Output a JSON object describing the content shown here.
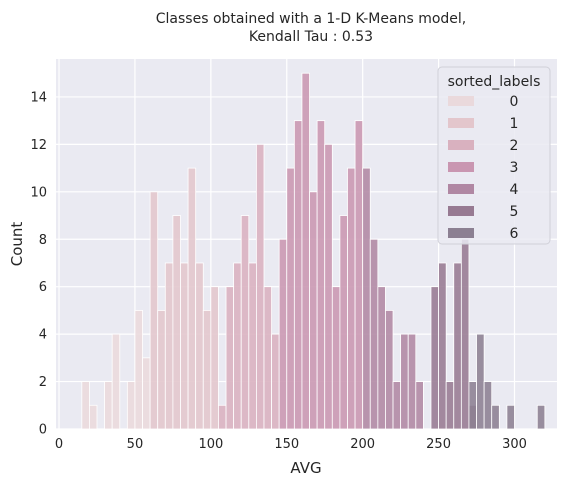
{
  "chart_data": {
    "type": "bar",
    "title_line1": "Classes obtained with a 1-D K-Means model,",
    "title_line2": "Kendall Tau : 0.53",
    "xlabel": "AVG",
    "ylabel": "Count",
    "xlim": [
      -2,
      328
    ],
    "ylim": [
      0,
      15.6
    ],
    "xticks": [
      0,
      50,
      100,
      150,
      200,
      250,
      300
    ],
    "yticks": [
      0,
      2,
      4,
      6,
      8,
      10,
      12,
      14
    ],
    "bin_width": 5,
    "grid": true,
    "legend_position": "top-right",
    "legend_title": "sorted_labels",
    "series": [
      {
        "name": "0",
        "color": "#ead9dc",
        "bins": [
          [
            15,
            2
          ],
          [
            20,
            1
          ],
          [
            30,
            2
          ],
          [
            35,
            4
          ],
          [
            45,
            2
          ],
          [
            50,
            5
          ],
          [
            55,
            3
          ]
        ]
      },
      {
        "name": "1",
        "color": "#e3c6cc",
        "bins": [
          [
            60,
            10
          ],
          [
            65,
            5
          ],
          [
            70,
            7
          ],
          [
            75,
            9
          ],
          [
            80,
            7
          ],
          [
            85,
            11
          ],
          [
            90,
            7
          ],
          [
            95,
            5
          ],
          [
            100,
            6
          ]
        ]
      },
      {
        "name": "2",
        "color": "#d9b1bf",
        "bins": [
          [
            105,
            1
          ],
          [
            110,
            6
          ],
          [
            115,
            7
          ],
          [
            120,
            9
          ],
          [
            125,
            7
          ],
          [
            130,
            12
          ],
          [
            135,
            6
          ],
          [
            140,
            4
          ]
        ]
      },
      {
        "name": "3",
        "color": "#c996b1",
        "bins": [
          [
            145,
            8
          ],
          [
            150,
            11
          ],
          [
            155,
            13
          ],
          [
            160,
            15
          ],
          [
            165,
            10
          ],
          [
            170,
            13
          ],
          [
            175,
            12
          ],
          [
            180,
            6
          ],
          [
            185,
            9
          ],
          [
            190,
            11
          ],
          [
            195,
            13
          ]
        ]
      },
      {
        "name": "4",
        "color": "#b087a3",
        "bins": [
          [
            200,
            11
          ],
          [
            205,
            8
          ],
          [
            210,
            6
          ],
          [
            215,
            5
          ],
          [
            220,
            2
          ],
          [
            225,
            4
          ],
          [
            230,
            4
          ],
          [
            235,
            2
          ]
        ]
      },
      {
        "name": "5",
        "color": "#977a92",
        "bins": [
          [
            245,
            6
          ],
          [
            250,
            7
          ],
          [
            255,
            2
          ],
          [
            260,
            7
          ],
          [
            265,
            8
          ],
          [
            270,
            1
          ]
        ]
      },
      {
        "name": "6",
        "color": "#8c8092",
        "bins": [
          [
            270,
            2
          ],
          [
            275,
            4
          ],
          [
            280,
            2
          ],
          [
            285,
            1
          ],
          [
            295,
            1
          ],
          [
            315,
            1
          ]
        ]
      }
    ]
  }
}
